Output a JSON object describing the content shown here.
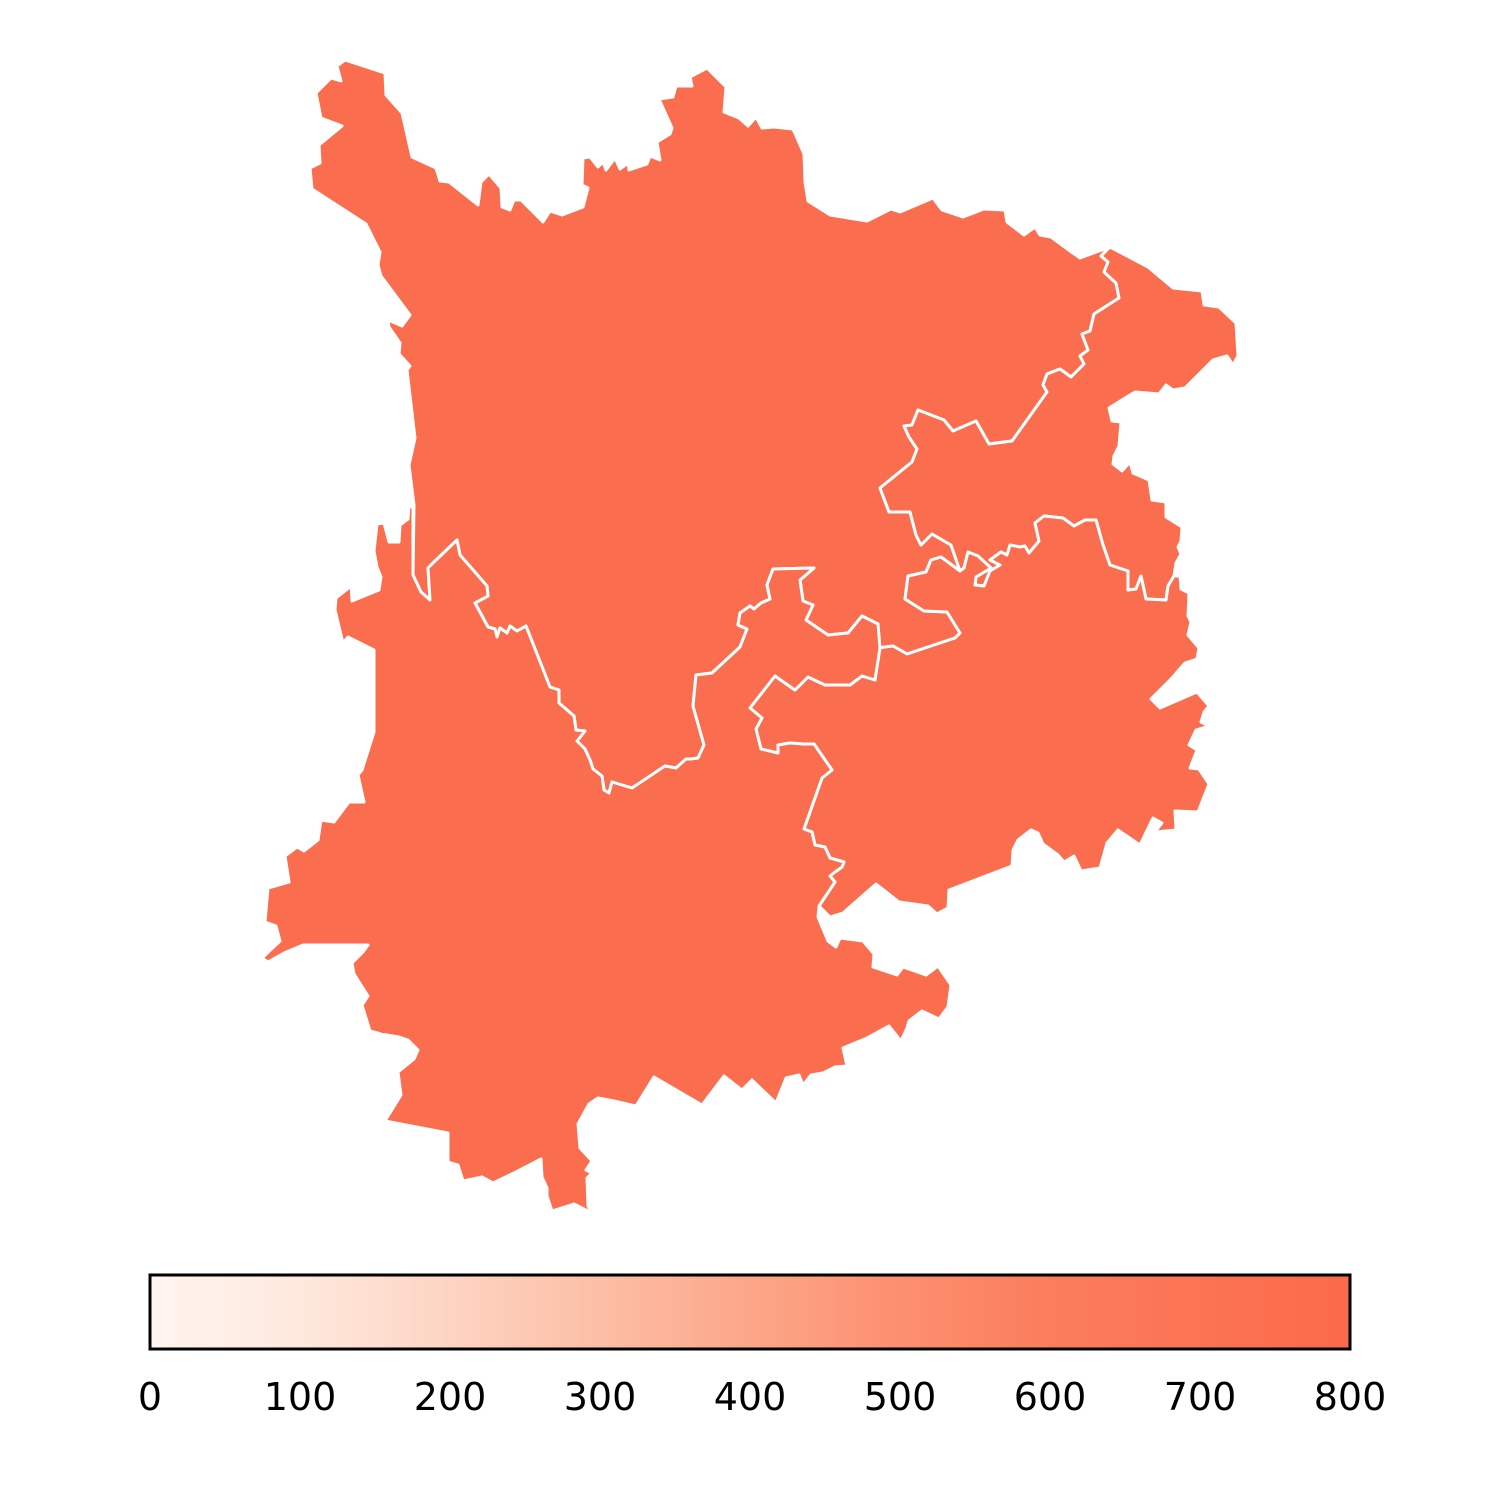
{
  "map": {
    "regions": [
      {
        "id": "north",
        "value": 760
      },
      {
        "id": "east",
        "value": 760
      },
      {
        "id": "southeast",
        "value": 760
      },
      {
        "id": "southwest",
        "value": 760
      }
    ],
    "fill_color": "#fb6d4f",
    "border_color": "#ffffff"
  },
  "colorbar": {
    "min": 0,
    "max": 800,
    "ticks": [
      "0",
      "100",
      "200",
      "300",
      "400",
      "500",
      "600",
      "700",
      "800"
    ],
    "color_low": "#fff5f0",
    "color_high": "#fb6a4a",
    "orientation": "horizontal",
    "placement": "bottom"
  }
}
